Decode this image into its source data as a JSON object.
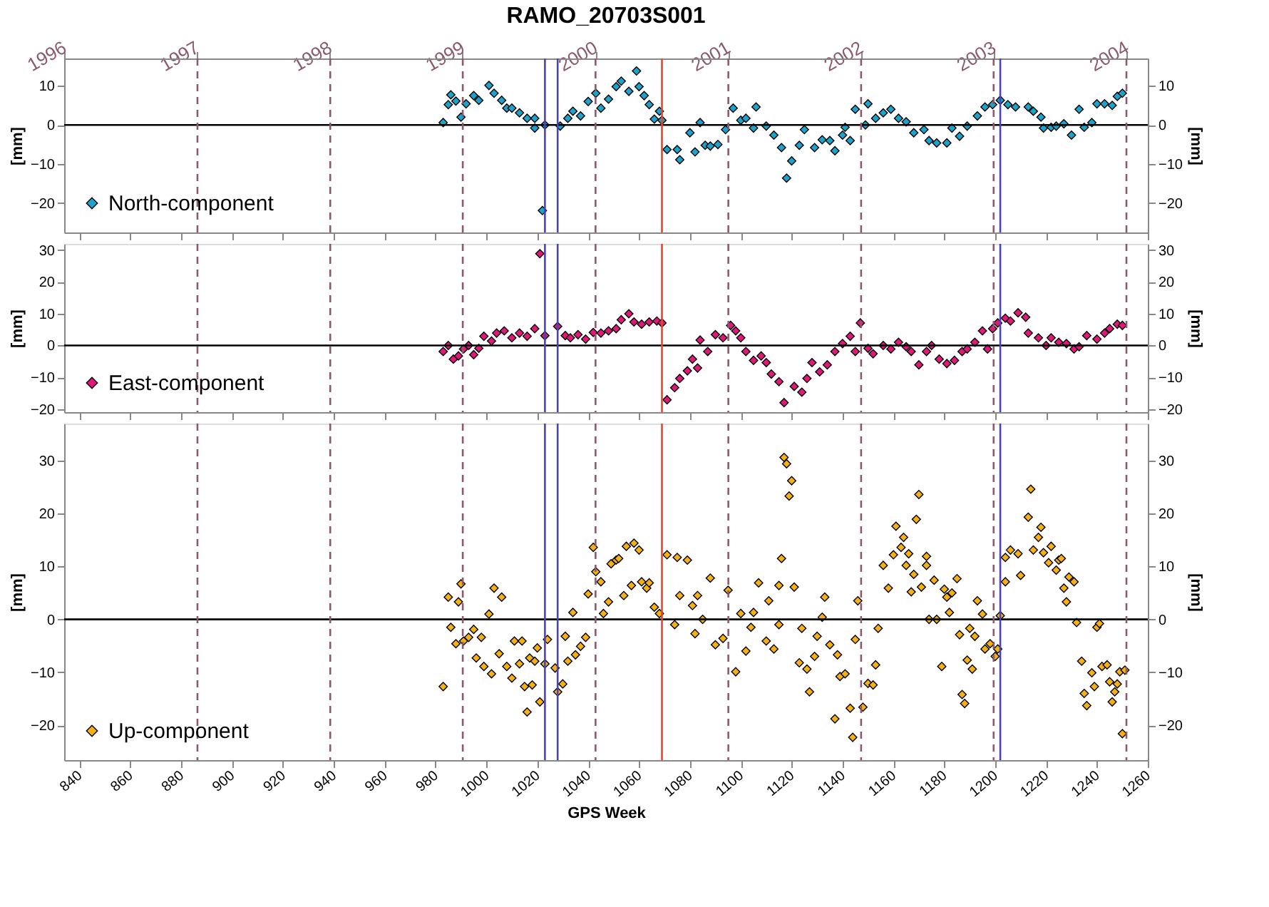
{
  "chart_data": [
    {
      "type": "scatter",
      "title": "RAMO_20703S001",
      "ylabel": "[mm]",
      "y2label": "[mm]",
      "xlim": [
        834,
        1260
      ],
      "xticks": [
        840,
        860,
        880,
        900,
        920,
        940,
        960,
        980,
        1000,
        1020,
        1040,
        1060,
        1080,
        1100,
        1120,
        1140,
        1160,
        1180,
        1200,
        1220,
        1240,
        1260
      ],
      "ylim": [
        -27.5,
        17
      ],
      "yticks": [
        -20,
        -10,
        0,
        10
      ],
      "y2lim": [
        -27.5,
        17
      ],
      "y2ticks": [
        -20,
        -10,
        0,
        10
      ],
      "x2lim": [
        1996.0,
        2004.16
      ],
      "x2ticks": [
        1996,
        1997,
        1998,
        1999,
        2000,
        2001,
        2002,
        2003,
        2004
      ],
      "tick_labels": "y",
      "legend": "bottom left",
      "marker": "diamond",
      "grid": false,
      "series": [
        {
          "name": "North-component",
          "color": "#1ba3cc",
          "x": [
            983,
            985,
            986,
            988,
            990,
            992,
            995,
            997,
            1001,
            1003,
            1006,
            1008,
            1010,
            1013,
            1016,
            1019,
            1019,
            1022,
            1023,
            1029,
            1032,
            1034,
            1037,
            1040,
            1043,
            1045,
            1048,
            1051,
            1053,
            1056,
            1059,
            1060,
            1062,
            1064,
            1066,
            1068,
            1069,
            1071,
            1075,
            1076,
            1080,
            1082,
            1084,
            1086,
            1088,
            1091,
            1094,
            1097,
            1100,
            1102,
            1105,
            1106,
            1110,
            1113,
            1116,
            1118,
            1120,
            1123,
            1125,
            1129,
            1132,
            1135,
            1137,
            1140,
            1141,
            1143,
            1145,
            1149,
            1150,
            1153,
            1156,
            1159,
            1162,
            1165,
            1168,
            1172,
            1174,
            1177,
            1181,
            1183,
            1186,
            1189,
            1193,
            1196,
            1199,
            1202,
            1205,
            1208,
            1213,
            1215,
            1218,
            1219,
            1222,
            1224,
            1227,
            1230,
            1233,
            1235,
            1238,
            1240,
            1243,
            1246,
            1248,
            1250
          ],
          "values": [
            0.6,
            5.2,
            7.7,
            6.1,
            2.0,
            5.4,
            7.5,
            6.3,
            10.1,
            8.1,
            6.3,
            4.3,
            4.3,
            3.1,
            1.7,
            1.7,
            -0.8,
            -21.9,
            0.0,
            -0.3,
            1.7,
            3.5,
            2.3,
            6.0,
            8.1,
            4.3,
            6.6,
            9.8,
            11.2,
            8.6,
            13.8,
            9.8,
            7.5,
            5.2,
            1.5,
            3.5,
            1.2,
            -6.3,
            -6.3,
            -8.9,
            -2.0,
            -6.9,
            0.6,
            -5.2,
            -5.4,
            -5.0,
            -1.2,
            4.3,
            1.2,
            1.7,
            -0.8,
            4.6,
            -0.3,
            -2.6,
            -5.8,
            -13.6,
            -9.2,
            -5.2,
            -1.2,
            -5.8,
            -3.8,
            -4.0,
            -6.6,
            -2.6,
            -0.6,
            -4.0,
            4.0,
            0.0,
            5.4,
            1.7,
            3.1,
            4.0,
            1.7,
            0.8,
            -2.0,
            -1.2,
            -4.0,
            -4.6,
            -4.6,
            -0.8,
            -2.9,
            -0.3,
            2.3,
            4.6,
            5.2,
            6.3,
            5.2,
            4.6,
            4.6,
            3.5,
            2.0,
            -0.8,
            -0.6,
            -0.3,
            0.3,
            -2.6,
            4.0,
            -0.6,
            0.6,
            5.4,
            5.4,
            5.0,
            7.3,
            8.1
          ]
        }
      ],
      "ref_lines": [
        {
          "axis": "y",
          "value": 0,
          "color": "#000000",
          "line_style": "solid"
        },
        {
          "axis": "x",
          "value": 886.4,
          "color": "#8c5a6e",
          "line_style": "dashed"
        },
        {
          "axis": "x",
          "value": 938.6,
          "color": "#8c5a6e",
          "line_style": "dashed"
        },
        {
          "axis": "x",
          "value": 990.7,
          "color": "#8c5a6e",
          "line_style": "dashed"
        },
        {
          "axis": "x",
          "value": 1042.9,
          "color": "#8c5a6e",
          "line_style": "dashed"
        },
        {
          "axis": "x",
          "value": 1095.1,
          "color": "#8c5a6e",
          "line_style": "dashed"
        },
        {
          "axis": "x",
          "value": 1147.3,
          "color": "#8c5a6e",
          "line_style": "dashed"
        },
        {
          "axis": "x",
          "value": 1199.4,
          "color": "#8c5a6e",
          "line_style": "dashed"
        },
        {
          "axis": "x",
          "value": 1251.6,
          "color": "#8c5a6e",
          "line_style": "dashed"
        },
        {
          "axis": "x",
          "value": 1023,
          "color": "#4b44b8",
          "line_style": "solid"
        },
        {
          "axis": "x",
          "value": 1028,
          "color": "#4b44b8",
          "line_style": "solid"
        },
        {
          "axis": "x",
          "value": 1069,
          "color": "#e8452c",
          "line_style": "solid"
        },
        {
          "axis": "x",
          "value": 1202,
          "color": "#4b44b8",
          "line_style": "solid"
        }
      ]
    },
    {
      "type": "scatter",
      "ylabel": "[mm]",
      "y2label": "[mm]",
      "xlim": [
        834,
        1260
      ],
      "xticks": [
        840,
        860,
        880,
        900,
        920,
        940,
        960,
        980,
        1000,
        1020,
        1040,
        1060,
        1080,
        1100,
        1120,
        1140,
        1160,
        1180,
        1200,
        1220,
        1240,
        1260
      ],
      "ylim": [
        -21,
        32
      ],
      "yticks": [
        -20,
        -10,
        0,
        10,
        20,
        30
      ],
      "y2lim": [
        -21,
        32
      ],
      "y2ticks": [
        -20,
        -10,
        0,
        10,
        20,
        30
      ],
      "tick_labels": "y",
      "legend": "bottom left",
      "marker": "diamond",
      "grid": false,
      "series": [
        {
          "name": "East-component",
          "color": "#e0187a",
          "x": [
            983,
            985,
            987,
            989,
            991,
            993,
            995,
            997,
            999,
            1002,
            1004,
            1007,
            1010,
            1013,
            1016,
            1019,
            1021,
            1023,
            1028,
            1031,
            1033,
            1036,
            1039,
            1042,
            1045,
            1048,
            1051,
            1053,
            1056,
            1058,
            1061,
            1064,
            1067,
            1069,
            1071,
            1074,
            1076,
            1079,
            1081,
            1083,
            1084,
            1087,
            1090,
            1093,
            1096,
            1098,
            1100,
            1102,
            1105,
            1108,
            1110,
            1112,
            1115,
            1117,
            1121,
            1124,
            1126,
            1128,
            1131,
            1134,
            1137,
            1140,
            1143,
            1145,
            1147,
            1150,
            1152,
            1156,
            1159,
            1162,
            1165,
            1167,
            1170,
            1173,
            1175,
            1178,
            1181,
            1184,
            1187,
            1189,
            1192,
            1195,
            1197,
            1199,
            1201,
            1204,
            1206,
            1209,
            1212,
            1213,
            1217,
            1220,
            1222,
            1225,
            1228,
            1231,
            1233,
            1236,
            1240,
            1243,
            1245,
            1248,
            1250
          ],
          "values": [
            -1.9,
            0,
            -4.3,
            -3.3,
            -1.1,
            0,
            -2.9,
            -0.9,
            2.9,
            1.4,
            3.9,
            4.6,
            2.4,
            3.9,
            2.9,
            5.3,
            28.9,
            3.1,
            6.0,
            3.1,
            2.4,
            3.4,
            2.0,
            4.1,
            3.9,
            4.6,
            5.3,
            8.1,
            10.0,
            7.4,
            6.7,
            7.4,
            7.7,
            7.1,
            -17.1,
            -13.3,
            -10.4,
            -8.0,
            -4.3,
            -7.1,
            1.7,
            -1.9,
            3.4,
            2.4,
            6.3,
            4.6,
            2.4,
            -1.9,
            -4.7,
            -3.3,
            -5.4,
            -9.0,
            -11.4,
            -18.0,
            -12.9,
            -14.7,
            -10.4,
            -5.4,
            -8.3,
            -6.1,
            -1.9,
            0.6,
            2.9,
            -1.9,
            7.1,
            -0.9,
            -2.6,
            0,
            -1.1,
            1.0,
            -0.4,
            -1.9,
            -6.1,
            -1.9,
            0,
            -4.3,
            -5.7,
            -4.7,
            -1.9,
            -1.1,
            1.0,
            4.6,
            -1.1,
            5.3,
            7.1,
            8.6,
            7.7,
            10.3,
            8.9,
            3.9,
            2.4,
            0,
            2.4,
            1.0,
            0.6,
            -1.1,
            -0.4,
            3.1,
            2.0,
            3.9,
            5.3,
            6.7,
            6.3
          ]
        }
      ],
      "ref_lines": [
        {
          "axis": "y",
          "value": 0,
          "color": "#000000",
          "line_style": "solid"
        },
        {
          "axis": "x",
          "value": 886.4,
          "color": "#8c5a6e",
          "line_style": "dashed"
        },
        {
          "axis": "x",
          "value": 938.6,
          "color": "#8c5a6e",
          "line_style": "dashed"
        },
        {
          "axis": "x",
          "value": 990.7,
          "color": "#8c5a6e",
          "line_style": "dashed"
        },
        {
          "axis": "x",
          "value": 1042.9,
          "color": "#8c5a6e",
          "line_style": "dashed"
        },
        {
          "axis": "x",
          "value": 1095.1,
          "color": "#8c5a6e",
          "line_style": "dashed"
        },
        {
          "axis": "x",
          "value": 1147.3,
          "color": "#8c5a6e",
          "line_style": "dashed"
        },
        {
          "axis": "x",
          "value": 1199.4,
          "color": "#8c5a6e",
          "line_style": "dashed"
        },
        {
          "axis": "x",
          "value": 1251.6,
          "color": "#8c5a6e",
          "line_style": "dashed"
        },
        {
          "axis": "x",
          "value": 1023,
          "color": "#4b44b8",
          "line_style": "solid"
        },
        {
          "axis": "x",
          "value": 1028,
          "color": "#4b44b8",
          "line_style": "solid"
        },
        {
          "axis": "x",
          "value": 1069,
          "color": "#e8452c",
          "line_style": "solid"
        },
        {
          "axis": "x",
          "value": 1202,
          "color": "#4b44b8",
          "line_style": "solid"
        }
      ]
    },
    {
      "type": "scatter",
      "xlabel": "GPS Week",
      "ylabel": "[mm]",
      "y2label": "[mm]",
      "xlim": [
        834,
        1260
      ],
      "xticks": [
        840,
        860,
        880,
        900,
        920,
        940,
        960,
        980,
        1000,
        1020,
        1040,
        1060,
        1080,
        1100,
        1120,
        1140,
        1160,
        1180,
        1200,
        1220,
        1240,
        1260
      ],
      "ylim": [
        -26.6,
        37
      ],
      "yticks": [
        -20,
        -10,
        0,
        10,
        20,
        30
      ],
      "y2lim": [
        -26.6,
        37
      ],
      "y2ticks": [
        -20,
        -10,
        0,
        10,
        20,
        30
      ],
      "legend": "bottom left",
      "marker": "diamond",
      "grid": false,
      "series": [
        {
          "name": "Up-component",
          "color": "#f5b014",
          "x": [
            983,
            985,
            986,
            988,
            989,
            990,
            991,
            993,
            995,
            996,
            998,
            999,
            1001,
            1002,
            1003,
            1005,
            1006,
            1008,
            1010,
            1011,
            1013,
            1014,
            1015,
            1016,
            1017,
            1018,
            1019,
            1020,
            1021,
            1023,
            1024,
            1027,
            1028,
            1030,
            1031,
            1032,
            1034,
            1035,
            1037,
            1039,
            1040,
            1042,
            1043,
            1045,
            1046,
            1048,
            1049,
            1051,
            1052,
            1054,
            1055,
            1057,
            1058,
            1060,
            1061,
            1063,
            1064,
            1066,
            1068,
            1071,
            1074,
            1075,
            1076,
            1079,
            1081,
            1082,
            1083,
            1085,
            1088,
            1090,
            1093,
            1095,
            1098,
            1100,
            1102,
            1104,
            1105,
            1107,
            1110,
            1111,
            1113,
            1115,
            1115,
            1116,
            1117,
            1118,
            1119,
            1120,
            1121,
            1123,
            1124,
            1126,
            1127,
            1129,
            1130,
            1132,
            1133,
            1135,
            1137,
            1138,
            1139,
            1141,
            1143,
            1144,
            1145,
            1146,
            1148,
            1150,
            1152,
            1153,
            1154,
            1156,
            1158,
            1160,
            1161,
            1163,
            1164,
            1165,
            1166,
            1167,
            1168,
            1169,
            1170,
            1171,
            1173,
            1173,
            1174,
            1176,
            1177,
            1179,
            1180,
            1181,
            1182,
            1183,
            1185,
            1186,
            1187,
            1188,
            1189,
            1190,
            1191,
            1192,
            1193,
            1195,
            1196,
            1198,
            1200,
            1201,
            1202,
            1204,
            1204,
            1206,
            1209,
            1210,
            1213,
            1214,
            1215,
            1217,
            1218,
            1219,
            1221,
            1222,
            1224,
            1225,
            1226,
            1227,
            1228,
            1229,
            1231,
            1232,
            1234,
            1235,
            1236,
            1238,
            1239,
            1240,
            1241,
            1242,
            1244,
            1245,
            1246,
            1247,
            1248,
            1249,
            1250,
            1251
          ],
          "values": [
            -12.7,
            4.2,
            -1.5,
            -4.6,
            3.3,
            6.7,
            -4.1,
            -3.4,
            -1.9,
            -7.3,
            -3.4,
            -8.9,
            1.0,
            -10.3,
            5.9,
            -6.5,
            4.2,
            -8.9,
            -11.1,
            -4.1,
            -8.4,
            -4.1,
            -12.7,
            -17.5,
            -7.3,
            -12.4,
            -7.9,
            -5.4,
            -15.6,
            -8.4,
            -3.8,
            -9.2,
            -13.7,
            -12.2,
            -3.2,
            -7.9,
            1.3,
            -6.7,
            -5.1,
            -3.4,
            4.8,
            13.6,
            9.0,
            7.1,
            1.1,
            3.3,
            10.5,
            11.2,
            11.5,
            4.5,
            13.8,
            6.4,
            14.4,
            13.1,
            7.1,
            5.9,
            6.9,
            2.3,
            1.1,
            12.2,
            -1.0,
            11.7,
            4.5,
            11.2,
            2.6,
            -2.7,
            4.5,
            0,
            7.8,
            -4.8,
            -3.6,
            5.5,
            -9.9,
            1.1,
            -6.0,
            -1.5,
            1.3,
            6.9,
            -4.1,
            3.5,
            -5.6,
            -1.0,
            6.4,
            11.5,
            30.6,
            29.4,
            23.3,
            26.2,
            6.1,
            -8.2,
            -1.7,
            -9.4,
            -13.7,
            -7.0,
            -3.2,
            0.4,
            4.2,
            -4.8,
            -18.8,
            -6.7,
            -10.8,
            -10.3,
            -16.8,
            -22.3,
            -3.8,
            3.5,
            -16.6,
            -12.1,
            -12.4,
            -8.6,
            -1.7,
            10.2,
            5.9,
            12.2,
            17.6,
            13.6,
            15.5,
            10.2,
            12.4,
            5.2,
            8.5,
            18.9,
            23.6,
            6.1,
            10.2,
            11.9,
            0,
            7.4,
            0,
            -8.9,
            5.7,
            4.2,
            1.3,
            5.0,
            7.7,
            -2.9,
            -14.2,
            -15.9,
            -7.7,
            -1.7,
            -9.4,
            -3.2,
            3.5,
            1.0,
            -5.6,
            -4.6,
            -7.0,
            -5.6,
            0.7,
            7.1,
            11.7,
            13.1,
            12.4,
            8.3,
            19.3,
            24.6,
            13.1,
            15.5,
            17.4,
            12.6,
            10.7,
            13.8,
            9.3,
            11.2,
            11.5,
            5.9,
            3.3,
            8.0,
            7.1,
            -0.6,
            -7.9,
            -14.0,
            -16.3,
            -10.1,
            -12.7,
            -1.5,
            -0.8,
            -8.9,
            -8.6,
            -11.8,
            -15.6,
            -13.7,
            -12.2,
            -9.9,
            -21.6,
            -9.6
          ]
        }
      ],
      "ref_lines": [
        {
          "axis": "y",
          "value": 0,
          "color": "#000000",
          "line_style": "solid"
        },
        {
          "axis": "x",
          "value": 886.4,
          "color": "#8c5a6e",
          "line_style": "dashed"
        },
        {
          "axis": "x",
          "value": 938.6,
          "color": "#8c5a6e",
          "line_style": "dashed"
        },
        {
          "axis": "x",
          "value": 990.7,
          "color": "#8c5a6e",
          "line_style": "dashed"
        },
        {
          "axis": "x",
          "value": 1042.9,
          "color": "#8c5a6e",
          "line_style": "dashed"
        },
        {
          "axis": "x",
          "value": 1095.1,
          "color": "#8c5a6e",
          "line_style": "dashed"
        },
        {
          "axis": "x",
          "value": 1147.3,
          "color": "#8c5a6e",
          "line_style": "dashed"
        },
        {
          "axis": "x",
          "value": 1199.4,
          "color": "#8c5a6e",
          "line_style": "dashed"
        },
        {
          "axis": "x",
          "value": 1251.6,
          "color": "#8c5a6e",
          "line_style": "dashed"
        },
        {
          "axis": "x",
          "value": 1023,
          "color": "#4b44b8",
          "line_style": "solid"
        },
        {
          "axis": "x",
          "value": 1028,
          "color": "#4b44b8",
          "line_style": "solid"
        },
        {
          "axis": "x",
          "value": 1069,
          "color": "#e8452c",
          "line_style": "solid"
        },
        {
          "axis": "x",
          "value": 1202,
          "color": "#4b44b8",
          "line_style": "solid"
        }
      ]
    }
  ]
}
